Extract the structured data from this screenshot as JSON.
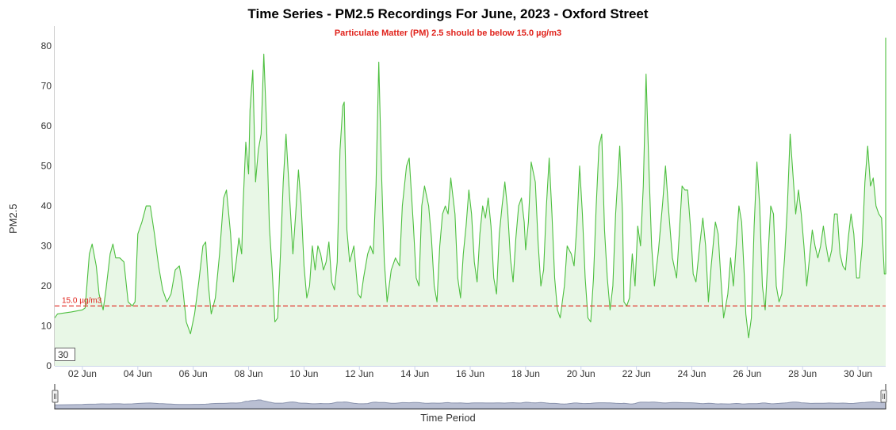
{
  "chart_data": {
    "type": "area",
    "title": "Time Series - PM2.5 Recordings For June, 2023 - Oxford Street",
    "subtitle": "Particulate Matter (PM) 2.5 should be below 15.0 µg/m3",
    "ylabel": "PM2.5",
    "xlabel": "Time Period",
    "ylim": [
      0,
      85
    ],
    "yticks": [
      0,
      10,
      20,
      30,
      40,
      50,
      60,
      70,
      80
    ],
    "x_range_days": [
      1.0,
      31.0
    ],
    "xtick_days": [
      2,
      4,
      6,
      8,
      10,
      12,
      14,
      16,
      18,
      20,
      22,
      24,
      26,
      28,
      30
    ],
    "xtick_labels": [
      "02 Jun",
      "04 Jun",
      "06 Jun",
      "08 Jun",
      "10 Jun",
      "12 Jun",
      "14 Jun",
      "16 Jun",
      "18 Jun",
      "20 Jun",
      "22 Jun",
      "24 Jun",
      "26 Jun",
      "28 Jun",
      "30 Jun"
    ],
    "threshold": {
      "value": 15.0,
      "label": "15.0 µg/m3",
      "color": "#e0221b"
    },
    "rolling_period": "30",
    "series": [
      {
        "line_color": "#4dbf3f",
        "fill_color": "#e8f7e6",
        "points": [
          [
            1.0,
            12
          ],
          [
            1.1,
            13
          ],
          [
            1.6,
            13.5
          ],
          [
            2.0,
            14
          ],
          [
            2.1,
            14.5
          ],
          [
            2.25,
            28
          ],
          [
            2.35,
            30.5
          ],
          [
            2.5,
            25
          ],
          [
            2.6,
            18
          ],
          [
            2.75,
            14
          ],
          [
            2.85,
            19
          ],
          [
            3.0,
            28
          ],
          [
            3.1,
            30.5
          ],
          [
            3.2,
            27
          ],
          [
            3.35,
            27
          ],
          [
            3.5,
            26
          ],
          [
            3.65,
            16
          ],
          [
            3.8,
            15
          ],
          [
            3.9,
            16
          ],
          [
            4.0,
            33
          ],
          [
            4.15,
            36
          ],
          [
            4.3,
            40
          ],
          [
            4.45,
            40
          ],
          [
            4.6,
            33
          ],
          [
            4.75,
            25
          ],
          [
            4.9,
            19
          ],
          [
            5.05,
            16
          ],
          [
            5.2,
            18
          ],
          [
            5.35,
            24
          ],
          [
            5.5,
            25
          ],
          [
            5.6,
            21
          ],
          [
            5.75,
            11
          ],
          [
            5.9,
            8
          ],
          [
            6.05,
            13
          ],
          [
            6.2,
            21
          ],
          [
            6.35,
            30
          ],
          [
            6.45,
            31
          ],
          [
            6.55,
            20
          ],
          [
            6.65,
            13
          ],
          [
            6.8,
            17
          ],
          [
            6.95,
            28
          ],
          [
            7.1,
            42
          ],
          [
            7.2,
            44
          ],
          [
            7.35,
            33
          ],
          [
            7.45,
            21
          ],
          [
            7.55,
            26
          ],
          [
            7.65,
            32
          ],
          [
            7.75,
            28
          ],
          [
            7.8,
            40
          ],
          [
            7.9,
            56
          ],
          [
            8.0,
            48
          ],
          [
            8.05,
            64
          ],
          [
            8.15,
            74
          ],
          [
            8.25,
            46
          ],
          [
            8.35,
            54
          ],
          [
            8.45,
            58
          ],
          [
            8.5,
            68
          ],
          [
            8.55,
            78
          ],
          [
            8.65,
            60
          ],
          [
            8.75,
            35
          ],
          [
            8.85,
            24
          ],
          [
            8.95,
            11
          ],
          [
            9.05,
            12
          ],
          [
            9.15,
            28
          ],
          [
            9.25,
            46
          ],
          [
            9.35,
            58
          ],
          [
            9.5,
            40
          ],
          [
            9.6,
            28
          ],
          [
            9.7,
            38
          ],
          [
            9.8,
            49
          ],
          [
            9.9,
            40
          ],
          [
            10.0,
            25
          ],
          [
            10.1,
            17
          ],
          [
            10.2,
            20
          ],
          [
            10.3,
            30
          ],
          [
            10.4,
            24
          ],
          [
            10.5,
            30
          ],
          [
            10.6,
            28
          ],
          [
            10.7,
            24
          ],
          [
            10.8,
            26
          ],
          [
            10.9,
            31
          ],
          [
            11.0,
            21
          ],
          [
            11.1,
            19
          ],
          [
            11.2,
            26
          ],
          [
            11.3,
            54
          ],
          [
            11.4,
            65
          ],
          [
            11.45,
            66
          ],
          [
            11.55,
            34
          ],
          [
            11.65,
            26
          ],
          [
            11.8,
            30
          ],
          [
            11.95,
            18
          ],
          [
            12.05,
            17
          ],
          [
            12.15,
            22
          ],
          [
            12.3,
            28
          ],
          [
            12.4,
            30
          ],
          [
            12.5,
            28
          ],
          [
            12.6,
            45
          ],
          [
            12.7,
            76
          ],
          [
            12.8,
            48
          ],
          [
            12.9,
            26
          ],
          [
            13.0,
            16
          ],
          [
            13.15,
            24
          ],
          [
            13.3,
            27
          ],
          [
            13.45,
            25
          ],
          [
            13.55,
            40
          ],
          [
            13.7,
            50
          ],
          [
            13.8,
            52
          ],
          [
            13.95,
            35
          ],
          [
            14.05,
            22
          ],
          [
            14.15,
            20
          ],
          [
            14.25,
            40
          ],
          [
            14.35,
            45
          ],
          [
            14.5,
            40
          ],
          [
            14.6,
            32
          ],
          [
            14.7,
            20
          ],
          [
            14.8,
            16
          ],
          [
            14.9,
            30
          ],
          [
            15.0,
            38
          ],
          [
            15.1,
            40
          ],
          [
            15.2,
            38
          ],
          [
            15.3,
            47
          ],
          [
            15.45,
            38
          ],
          [
            15.55,
            22
          ],
          [
            15.65,
            17
          ],
          [
            15.75,
            28
          ],
          [
            15.85,
            35
          ],
          [
            15.95,
            44
          ],
          [
            16.05,
            38
          ],
          [
            16.15,
            26
          ],
          [
            16.25,
            21
          ],
          [
            16.35,
            33
          ],
          [
            16.45,
            40
          ],
          [
            16.55,
            37
          ],
          [
            16.65,
            42
          ],
          [
            16.75,
            35
          ],
          [
            16.85,
            22
          ],
          [
            16.95,
            18
          ],
          [
            17.05,
            33
          ],
          [
            17.15,
            40
          ],
          [
            17.25,
            46
          ],
          [
            17.35,
            39
          ],
          [
            17.45,
            27
          ],
          [
            17.55,
            21
          ],
          [
            17.65,
            32
          ],
          [
            17.75,
            40
          ],
          [
            17.85,
            42
          ],
          [
            17.95,
            36
          ],
          [
            18.0,
            29
          ],
          [
            18.1,
            36
          ],
          [
            18.2,
            51
          ],
          [
            18.35,
            46
          ],
          [
            18.45,
            31
          ],
          [
            18.55,
            20
          ],
          [
            18.65,
            24
          ],
          [
            18.75,
            40
          ],
          [
            18.85,
            52
          ],
          [
            18.95,
            38
          ],
          [
            19.05,
            22
          ],
          [
            19.15,
            14
          ],
          [
            19.25,
            12
          ],
          [
            19.4,
            20
          ],
          [
            19.5,
            30
          ],
          [
            19.65,
            28
          ],
          [
            19.75,
            25
          ],
          [
            19.85,
            35
          ],
          [
            19.95,
            50
          ],
          [
            20.05,
            38
          ],
          [
            20.15,
            22
          ],
          [
            20.25,
            12
          ],
          [
            20.35,
            11
          ],
          [
            20.45,
            22
          ],
          [
            20.55,
            40
          ],
          [
            20.65,
            55
          ],
          [
            20.75,
            58
          ],
          [
            20.85,
            34
          ],
          [
            20.95,
            22
          ],
          [
            21.05,
            14
          ],
          [
            21.15,
            20
          ],
          [
            21.25,
            38
          ],
          [
            21.4,
            55
          ],
          [
            21.5,
            38
          ],
          [
            21.55,
            16
          ],
          [
            21.65,
            15
          ],
          [
            21.75,
            17
          ],
          [
            21.85,
            28
          ],
          [
            21.95,
            20
          ],
          [
            22.05,
            35
          ],
          [
            22.15,
            30
          ],
          [
            22.25,
            45
          ],
          [
            22.35,
            73
          ],
          [
            22.45,
            50
          ],
          [
            22.55,
            30
          ],
          [
            22.65,
            20
          ],
          [
            22.8,
            29
          ],
          [
            22.95,
            41
          ],
          [
            23.05,
            50
          ],
          [
            23.15,
            40
          ],
          [
            23.3,
            27
          ],
          [
            23.45,
            22
          ],
          [
            23.55,
            33
          ],
          [
            23.65,
            45
          ],
          [
            23.75,
            44
          ],
          [
            23.85,
            44
          ],
          [
            23.95,
            35
          ],
          [
            24.05,
            23
          ],
          [
            24.15,
            21
          ],
          [
            24.3,
            31
          ],
          [
            24.4,
            37
          ],
          [
            24.5,
            30
          ],
          [
            24.6,
            16
          ],
          [
            24.7,
            25
          ],
          [
            24.85,
            36
          ],
          [
            24.95,
            33
          ],
          [
            25.05,
            22
          ],
          [
            25.15,
            12
          ],
          [
            25.3,
            18
          ],
          [
            25.4,
            27
          ],
          [
            25.5,
            20
          ],
          [
            25.6,
            30
          ],
          [
            25.7,
            40
          ],
          [
            25.8,
            36
          ],
          [
            25.9,
            22
          ],
          [
            25.95,
            13
          ],
          [
            26.05,
            7
          ],
          [
            26.15,
            12
          ],
          [
            26.25,
            35
          ],
          [
            26.35,
            51
          ],
          [
            26.45,
            40
          ],
          [
            26.55,
            20
          ],
          [
            26.65,
            14
          ],
          [
            26.75,
            27
          ],
          [
            26.85,
            40
          ],
          [
            26.95,
            38
          ],
          [
            27.05,
            20
          ],
          [
            27.15,
            16
          ],
          [
            27.25,
            18
          ],
          [
            27.35,
            27
          ],
          [
            27.45,
            40
          ],
          [
            27.55,
            58
          ],
          [
            27.65,
            48
          ],
          [
            27.75,
            38
          ],
          [
            27.85,
            44
          ],
          [
            27.95,
            38
          ],
          [
            28.05,
            30
          ],
          [
            28.15,
            20
          ],
          [
            28.25,
            27
          ],
          [
            28.35,
            34
          ],
          [
            28.45,
            30
          ],
          [
            28.55,
            27
          ],
          [
            28.65,
            30
          ],
          [
            28.75,
            35
          ],
          [
            28.85,
            30
          ],
          [
            28.95,
            26
          ],
          [
            29.05,
            29
          ],
          [
            29.15,
            38
          ],
          [
            29.25,
            38
          ],
          [
            29.35,
            28
          ],
          [
            29.45,
            25
          ],
          [
            29.55,
            24
          ],
          [
            29.65,
            32
          ],
          [
            29.75,
            38
          ],
          [
            29.85,
            33
          ],
          [
            29.95,
            22
          ],
          [
            30.05,
            22
          ],
          [
            30.15,
            30
          ],
          [
            30.25,
            46
          ],
          [
            30.35,
            55
          ],
          [
            30.45,
            45
          ],
          [
            30.55,
            47
          ],
          [
            30.65,
            40
          ],
          [
            30.75,
            38
          ],
          [
            30.85,
            37
          ],
          [
            30.95,
            23
          ],
          [
            31.0,
            23
          ],
          [
            31.05,
            35
          ],
          [
            31.1,
            65
          ],
          [
            31.15,
            80
          ],
          [
            31.2,
            82
          ],
          [
            31.25,
            68
          ]
        ]
      }
    ]
  }
}
